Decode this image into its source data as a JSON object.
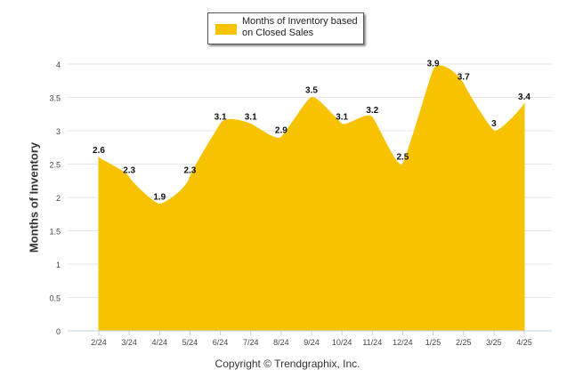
{
  "chart_data": {
    "type": "area",
    "categories": [
      "2/24",
      "3/24",
      "4/24",
      "5/24",
      "6/24",
      "7/24",
      "8/24",
      "9/24",
      "10/24",
      "11/24",
      "12/24",
      "1/25",
      "2/25",
      "3/25",
      "4/25"
    ],
    "series": [
      {
        "name": "Months of Inventory based on Closed Sales",
        "values": [
          2.6,
          2.3,
          1.9,
          2.3,
          3.1,
          3.1,
          2.9,
          3.5,
          3.1,
          3.2,
          2.5,
          3.9,
          3.7,
          3,
          3.4
        ]
      }
    ],
    "data_labels": [
      "2.6",
      "2.3",
      "1.9",
      "2.3",
      "3.1",
      "3.1",
      "2.9",
      "3.5",
      "3.1",
      "3.2",
      "2.5",
      "3.9",
      "3.7",
      "3",
      "3.4"
    ],
    "yticks": [
      "0",
      "0.5",
      "1",
      "1.5",
      "2",
      "2.5",
      "3",
      "3.5",
      "4"
    ],
    "ylim": [
      0,
      4
    ],
    "ylabel": "Months of Inventory",
    "xlabel": "",
    "grid": true,
    "legend_position": "top-center",
    "colors": {
      "series": "#f7c200",
      "grid": "#e6e6e6",
      "axis": "#c0d0e0",
      "text": "#333333"
    }
  },
  "legend": {
    "label": "Months of Inventory based on Closed Sales"
  },
  "footer": {
    "copyright": "Copyright © Trendgraphix, Inc."
  }
}
